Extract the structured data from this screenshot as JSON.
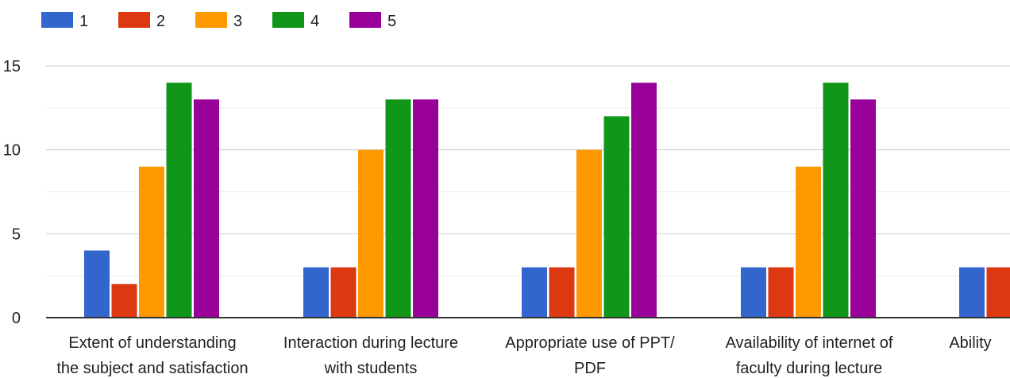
{
  "chart_data": {
    "type": "bar",
    "title": "",
    "xlabel": "",
    "ylabel": "",
    "ylim": [
      0,
      15
    ],
    "yticks": [
      "0",
      "5",
      "10",
      "15"
    ],
    "grid": true,
    "legend_position": "top-left",
    "categories": [
      [
        "Extent of understanding",
        "the subject and satisfaction"
      ],
      [
        "Interaction during lecture",
        "with students"
      ],
      [
        "Appropriate use of PPT/",
        "PDF"
      ],
      [
        "Availability of internet of",
        "faculty during lecture"
      ],
      [
        "Ability"
      ]
    ],
    "series": [
      {
        "name": "1",
        "color": "#3366cc",
        "values": [
          4,
          3,
          3,
          3,
          3
        ]
      },
      {
        "name": "2",
        "color": "#dc3912",
        "values": [
          2,
          3,
          3,
          3,
          3
        ]
      },
      {
        "name": "3",
        "color": "#ff9900",
        "values": [
          9,
          10,
          10,
          9,
          null
        ]
      },
      {
        "name": "4",
        "color": "#109618",
        "values": [
          14,
          13,
          12,
          14,
          null
        ]
      },
      {
        "name": "5",
        "color": "#990099",
        "values": [
          13,
          13,
          14,
          13,
          null
        ]
      }
    ]
  }
}
